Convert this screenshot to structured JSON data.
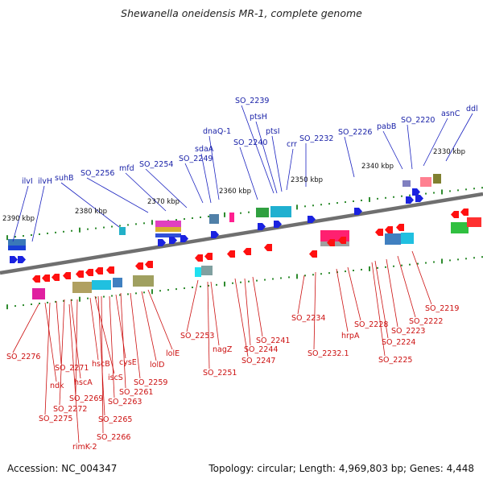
{
  "title": "Shewanella oneidensis MR-1, complete genome",
  "accession": "Accession: NC_004347",
  "summary": "Topology: circular; Length: 4,969,803 bp; Genes: 4,448",
  "ticks": [
    "2390 kbp",
    "2380 kbp",
    "2370 kbp",
    "2360 kbp",
    "2350 kbp",
    "2340 kbp",
    "2330 kbp"
  ],
  "forward_genes": [
    "ilvI",
    "ilvH",
    "suhB",
    "SO_2256",
    "mfd",
    "SO_2254",
    "SO_2249",
    "sdaA",
    "dnaQ-1",
    "SO_2240",
    "SO_2239",
    "ptsH",
    "ptsI",
    "crr",
    "SO_2232",
    "SO_2226",
    "pabB",
    "SO_2220",
    "asnC",
    "ddl"
  ],
  "reverse_genes": [
    "SO_2276",
    "ndk",
    "SO_2271",
    "SO_2275",
    "SO_2272",
    "hscA",
    "SO_2269",
    "rimK-2",
    "hscB",
    "iscS",
    "SO_2265",
    "SO_2266",
    "cysE",
    "SO_2263",
    "SO_2261",
    "SO_2259",
    "lolD",
    "lolE",
    "SO_2253",
    "SO_2251",
    "nagZ",
    "SO_2247",
    "SO_2244",
    "SO_2241",
    "SO_2234",
    "SO_2232.1",
    "hrpA",
    "SO_2228",
    "SO_2224",
    "SO_2225",
    "SO_2223",
    "SO_2222",
    "SO_2219"
  ],
  "colors": {
    "forward_label": "#1a22a8",
    "reverse_label": "#cc1010",
    "backbone": "#7a7a7a",
    "tick_mark": "#2e8b2e"
  }
}
